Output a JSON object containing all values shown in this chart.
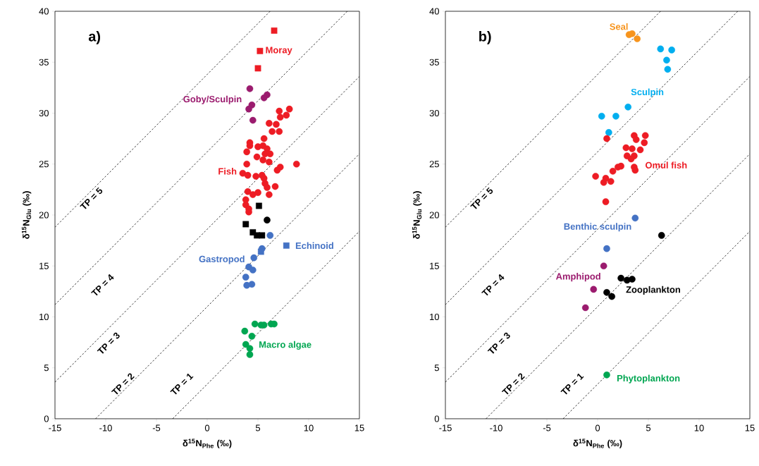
{
  "chart_data": [
    {
      "type": "scatter",
      "title": "a)",
      "xlabel": "δ$^{15}$N$_{Phe}$  (‰)",
      "ylabel": "δ$^{15}$N$_{Glu}$ (‰)",
      "xlim": [
        -15,
        15
      ],
      "ylim": [
        0,
        40
      ],
      "xticks": [
        -15,
        -10,
        -5,
        0,
        5,
        10,
        15
      ],
      "yticks": [
        0,
        5,
        10,
        15,
        20,
        25,
        30,
        35,
        40
      ],
      "series": [
        {
          "name": "Moray",
          "color": "#ed1c24",
          "marker": "square",
          "x": [
            6.6,
            5.2,
            5.0
          ],
          "values": [
            38.1,
            36.1,
            34.4
          ]
        },
        {
          "name": "Goby/Sculpin",
          "color": "#9b1b6e",
          "marker": "circle",
          "x": [
            4.2,
            5.9,
            5.6,
            4.4,
            4.1,
            4.5
          ],
          "values": [
            32.4,
            31.8,
            31.5,
            30.8,
            30.4,
            29.3
          ]
        },
        {
          "name": "Fish",
          "color": "#ed1c24",
          "marker": "circle",
          "x": [
            8.1,
            7.1,
            7.8,
            7.2,
            6.1,
            6.8,
            6.4,
            7.1,
            5.6,
            4.2,
            4.2,
            5.0,
            5.5,
            5.9,
            3.9,
            5.7,
            6.2,
            4.9,
            5.5,
            6.1,
            3.9,
            8.8,
            7.2,
            6.9,
            3.5,
            4.0,
            4.8,
            5.4,
            5.6,
            5.7,
            6.7,
            5.9,
            4.0,
            4.5,
            5.0,
            6.1,
            3.8,
            3.8,
            4.1,
            4.1
          ],
          "values": [
            30.4,
            30.2,
            29.8,
            29.6,
            29.0,
            28.9,
            28.2,
            28.2,
            27.5,
            27.1,
            26.8,
            26.7,
            26.8,
            26.5,
            26.2,
            26.0,
            26.0,
            25.7,
            25.4,
            25.2,
            25.0,
            25.0,
            24.7,
            24.4,
            24.1,
            23.9,
            23.8,
            23.9,
            23.6,
            23.1,
            22.8,
            22.7,
            22.3,
            22.0,
            22.2,
            22.0,
            21.5,
            21.0,
            20.6,
            20.3
          ]
        },
        {
          "color": "#000000",
          "marker": "square",
          "x": [
            5.1,
            3.8,
            4.5,
            4.9,
            5.4
          ],
          "values": [
            20.9,
            19.1,
            18.3,
            18.0,
            18.0
          ]
        },
        {
          "color": "#000000",
          "marker": "circle",
          "x": [
            5.9
          ],
          "values": [
            19.5
          ]
        },
        {
          "name": "Gastropod",
          "color": "#4472c4",
          "marker": "circle",
          "x": [
            6.2,
            5.4,
            4.6,
            4.1,
            4.5,
            3.8,
            3.9,
            4.4
          ],
          "values": [
            18.0,
            16.7,
            15.8,
            14.9,
            14.6,
            13.9,
            13.1,
            13.2
          ]
        },
        {
          "name": "Echinoid",
          "color": "#4472c4",
          "marker": "square",
          "x": [
            7.8,
            5.3
          ],
          "values": [
            17.0,
            16.4
          ]
        },
        {
          "name": "Macro algae",
          "color": "#00a651",
          "marker": "circle",
          "x": [
            4.7,
            5.3,
            5.6,
            6.3,
            6.6,
            3.7,
            4.4,
            3.8,
            4.2,
            4.2
          ],
          "values": [
            9.3,
            9.2,
            9.2,
            9.3,
            9.3,
            8.6,
            8.1,
            7.3,
            6.9,
            6.3
          ]
        },
        {
          "type": "line",
          "name": "TP = 1",
          "color": "#000000",
          "line_style": "dashed",
          "marker": "none",
          "x": [
            -3.4,
            15
          ],
          "values": [
            0,
            18.4
          ]
        },
        {
          "type": "line",
          "name": "TP = 2",
          "color": "#000000",
          "line_style": "dashed",
          "marker": "none",
          "x": [
            -11,
            15
          ],
          "values": [
            0,
            26
          ]
        },
        {
          "type": "line",
          "name": "TP = 3",
          "color": "#000000",
          "line_style": "dashed",
          "marker": "none",
          "x": [
            -15,
            15
          ],
          "values": [
            3.6,
            33.6
          ]
        },
        {
          "type": "line",
          "name": "TP = 4",
          "color": "#000000",
          "line_style": "dashed",
          "marker": "none",
          "x": [
            -15,
            13.8
          ],
          "values": [
            11.2,
            40
          ]
        },
        {
          "type": "line",
          "name": "TP = 5",
          "color": "#000000",
          "line_style": "dashed",
          "marker": "none",
          "x": [
            -15,
            6.2
          ],
          "values": [
            18.8,
            40
          ]
        }
      ]
    },
    {
      "type": "scatter",
      "title": "b)",
      "xlabel": "δ$^{15}$N$_{Phe}$  (‰)",
      "ylabel": "δ$^{15}$N$_{Glu}$ (‰)",
      "xlim": [
        -15,
        15
      ],
      "ylim": [
        0,
        40
      ],
      "xticks": [
        -15,
        -10,
        -5,
        0,
        5,
        10,
        15
      ],
      "yticks": [
        0,
        5,
        10,
        15,
        20,
        25,
        30,
        35,
        40
      ],
      "series": [
        {
          "name": "Seal",
          "color": "#f7941d",
          "marker": "circle",
          "x": [
            3.1,
            3.4,
            3.9
          ],
          "values": [
            37.7,
            37.8,
            37.3
          ]
        },
        {
          "name": "Sculpin",
          "color": "#00aeef",
          "marker": "circle",
          "x": [
            6.2,
            7.3,
            6.8,
            6.9,
            3.0,
            0.4,
            1.8,
            1.1
          ],
          "values": [
            36.3,
            36.2,
            35.2,
            34.3,
            30.6,
            29.7,
            29.7,
            28.1
          ]
        },
        {
          "name": "Omul fish",
          "color": "#ed1c24",
          "marker": "circle",
          "x": [
            0.9,
            3.6,
            4.7,
            3.8,
            4.6,
            2.8,
            3.4,
            4.2,
            2.9,
            3.6,
            3.3,
            2.3,
            2.0,
            3.6,
            3.7,
            1.5,
            -0.2,
            0.8,
            1.3,
            0.6,
            0.8
          ],
          "values": [
            27.5,
            27.8,
            27.8,
            27.4,
            27.1,
            26.6,
            26.5,
            26.4,
            25.8,
            25.8,
            25.5,
            24.8,
            24.7,
            24.7,
            24.4,
            24.3,
            23.8,
            23.6,
            23.3,
            23.2,
            21.3
          ]
        },
        {
          "name": "Benthic sculpin",
          "color": "#4472c4",
          "marker": "circle",
          "x": [
            3.7,
            0.9
          ],
          "values": [
            19.7,
            16.7
          ]
        },
        {
          "name": "Amphipod",
          "color": "#9b1b6e",
          "marker": "circle",
          "x": [
            0.6,
            -0.4,
            -1.2
          ],
          "values": [
            15.0,
            12.7,
            10.9
          ]
        },
        {
          "name": "Zooplankton",
          "color": "#000000",
          "marker": "circle",
          "x": [
            6.3,
            2.3,
            2.9,
            3.4,
            0.9,
            1.4
          ],
          "values": [
            18.0,
            13.8,
            13.6,
            13.7,
            12.4,
            12.0
          ]
        },
        {
          "name": "Phytoplankton",
          "color": "#00a651",
          "marker": "circle",
          "x": [
            0.9
          ],
          "values": [
            4.3
          ]
        },
        {
          "type": "line",
          "name": "TP = 1",
          "color": "#000000",
          "line_style": "dashed",
          "marker": "none",
          "x": [
            -3.4,
            15
          ],
          "values": [
            0,
            18.4
          ]
        },
        {
          "type": "line",
          "name": "TP = 2",
          "color": "#000000",
          "line_style": "dashed",
          "marker": "none",
          "x": [
            -11,
            15
          ],
          "values": [
            0,
            26
          ]
        },
        {
          "type": "line",
          "name": "TP = 3",
          "color": "#000000",
          "line_style": "dashed",
          "marker": "none",
          "x": [
            -15,
            15
          ],
          "values": [
            3.6,
            33.6
          ]
        },
        {
          "type": "line",
          "name": "TP = 4",
          "color": "#000000",
          "line_style": "dashed",
          "marker": "none",
          "x": [
            -15,
            13.8
          ],
          "values": [
            11.2,
            40
          ]
        },
        {
          "type": "line",
          "name": "TP = 5",
          "color": "#000000",
          "line_style": "dashed",
          "marker": "none",
          "x": [
            -15,
            6.2
          ],
          "values": [
            18.8,
            40
          ]
        }
      ]
    }
  ]
}
